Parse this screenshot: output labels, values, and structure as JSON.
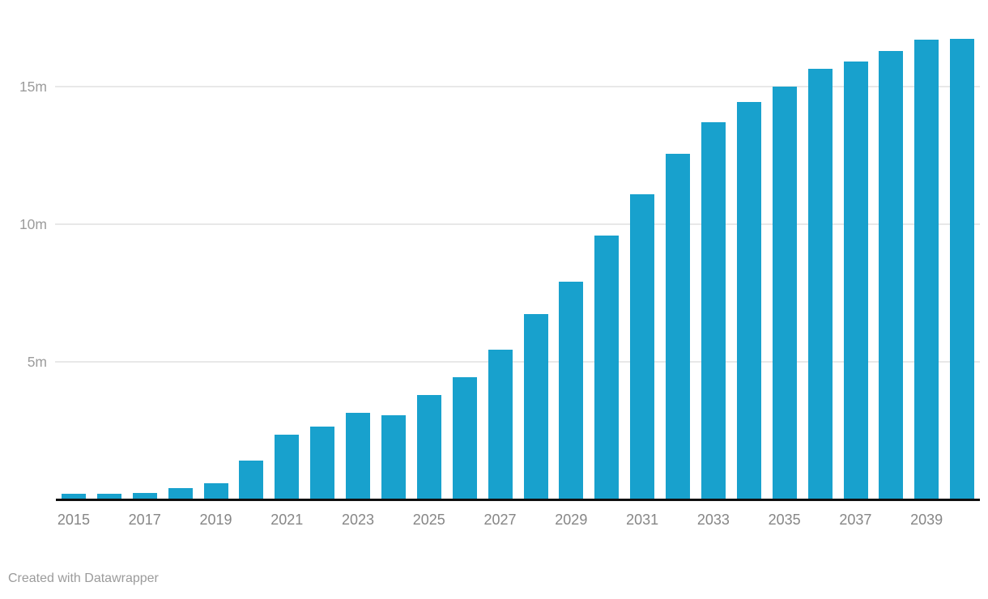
{
  "chart_data": {
    "type": "bar",
    "title": "",
    "xlabel": "",
    "ylabel": "",
    "unit": "m",
    "x": [
      2015,
      2016,
      2017,
      2018,
      2019,
      2020,
      2021,
      2022,
      2023,
      2024,
      2025,
      2026,
      2027,
      2028,
      2029,
      2030,
      2031,
      2032,
      2033,
      2034,
      2035,
      2036,
      2037,
      2038,
      2039,
      2040
    ],
    "values": [
      0.2,
      0.2,
      0.25,
      0.4,
      0.6,
      1.4,
      2.35,
      2.65,
      3.15,
      3.05,
      3.8,
      4.45,
      5.45,
      6.75,
      7.9,
      9.6,
      11.1,
      12.55,
      13.7,
      14.45,
      15.0,
      15.65,
      15.9,
      16.3,
      16.7,
      16.75
    ],
    "ylim": [
      0,
      17
    ],
    "grid": "horizontal",
    "legend": "none",
    "y_ticks": [
      {
        "value": 5,
        "label": "5m"
      },
      {
        "value": 10,
        "label": "10m"
      },
      {
        "value": 15,
        "label": "15m"
      }
    ],
    "x_tick_labels": [
      "2015",
      "2017",
      "2019",
      "2021",
      "2023",
      "2025",
      "2027",
      "2029",
      "2031",
      "2033",
      "2035",
      "2037",
      "2039"
    ]
  },
  "colors": {
    "bar": "#18a1cd",
    "gridline": "#e8e8e8",
    "axis_line": "#101010",
    "x_tick_text": "#868686",
    "y_tick_text": "#9c9c9c",
    "footer_text": "#9b9b9b",
    "background": "#ffffff"
  },
  "footer": {
    "attribution": "Created with Datawrapper"
  }
}
